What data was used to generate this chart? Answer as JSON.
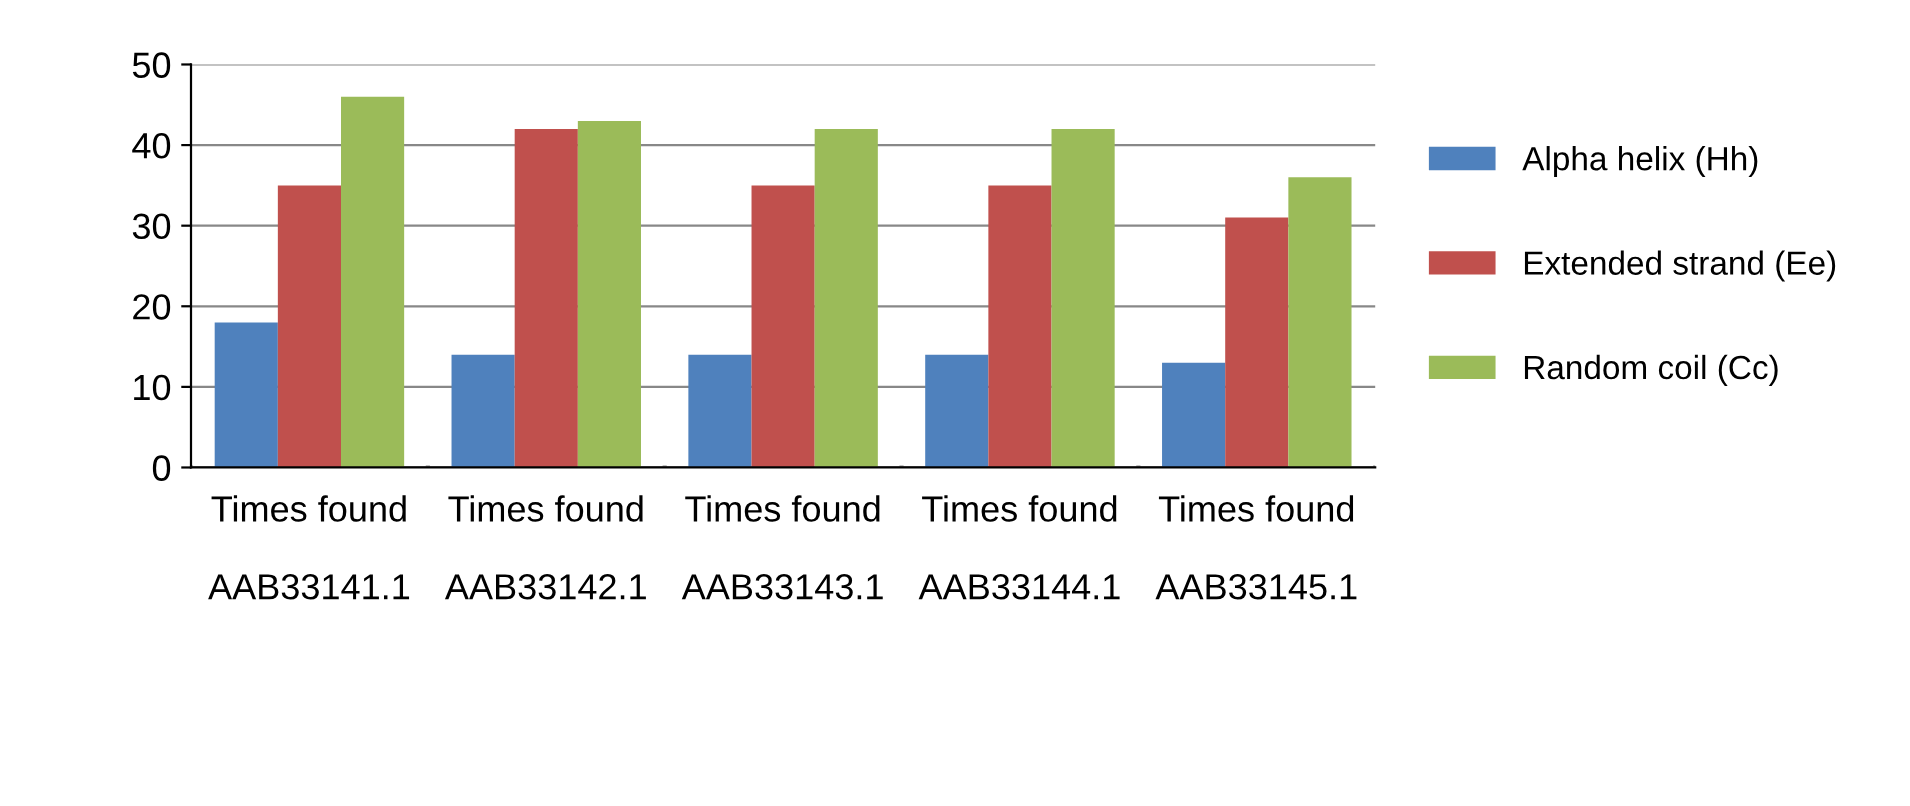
{
  "chart_data": {
    "type": "bar",
    "categories": [
      "Times found\n\nAAB33141.1",
      "Times found\n\nAAB33142.1",
      "Times found\n\nAAB33143.1",
      "Times found\n\nAAB33144.1",
      "Times found\n\nAAB33145.1"
    ],
    "series": [
      {
        "name": "Alpha helix (Hh)",
        "color": "#4f81bd",
        "values": [
          18,
          14,
          14,
          14,
          13
        ]
      },
      {
        "name": "Extended strand (Ee)",
        "color": "#c0504d",
        "values": [
          35,
          42,
          35,
          35,
          31
        ]
      },
      {
        "name": "Random coil (Cc)",
        "color": "#9bbb59",
        "values": [
          46,
          43,
          42,
          42,
          36
        ]
      }
    ],
    "ylim": [
      0,
      50
    ],
    "yticks": [
      0,
      10,
      20,
      30,
      40,
      50
    ],
    "grid": "y",
    "legend": "right"
  }
}
